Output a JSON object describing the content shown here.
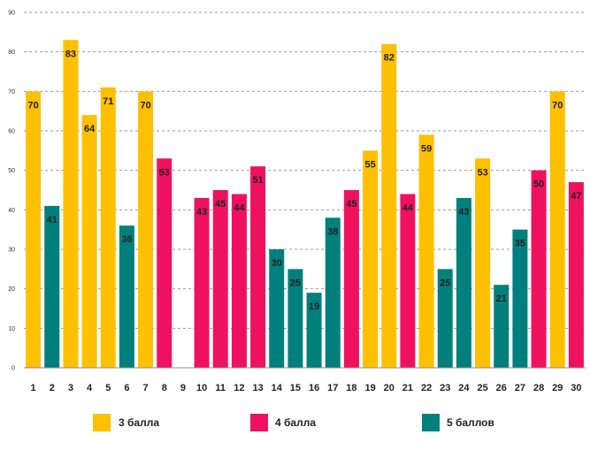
{
  "chart_data": {
    "type": "bar",
    "title": "",
    "xlabel": "",
    "ylabel": "",
    "ylim": [
      0,
      90
    ],
    "y_ticks": [
      "0",
      "10",
      "20",
      "30",
      "40",
      "50",
      "60",
      "70",
      "80",
      "90"
    ],
    "grid": true,
    "legend_position": "bottom",
    "categories": [
      "1",
      "2",
      "3",
      "4",
      "5",
      "6",
      "7",
      "8",
      "9",
      "10",
      "11",
      "12",
      "13",
      "14",
      "15",
      "16",
      "17",
      "18",
      "19",
      "20",
      "21",
      "22",
      "23",
      "24",
      "25",
      "26",
      "27",
      "28",
      "29",
      "30"
    ],
    "values": [
      70,
      41,
      83,
      64,
      71,
      36,
      70,
      53,
      null,
      43,
      45,
      44,
      51,
      30,
      25,
      19,
      38,
      45,
      55,
      82,
      44,
      59,
      25,
      43,
      53,
      21,
      35,
      50,
      70,
      47
    ],
    "labels": [
      "70",
      "41",
      "83",
      "64",
      "71",
      "36",
      "70",
      "53",
      "",
      "43",
      "45",
      "44",
      "51",
      "30",
      "25",
      "19",
      "38",
      "45",
      "55",
      "82",
      "44",
      "59",
      "25",
      "43",
      "53",
      "21",
      "35",
      "50",
      "70",
      "47"
    ],
    "groups": [
      "g3",
      "g5",
      "g3",
      "g3",
      "g3",
      "g5",
      "g3",
      "g4",
      null,
      "g4",
      "g4",
      "g4",
      "g4",
      "g5",
      "g5",
      "g5",
      "g5",
      "g4",
      "g3",
      "g3",
      "g4",
      "g3",
      "g5",
      "g5",
      "g3",
      "g5",
      "g5",
      "g4",
      "g3",
      "g4"
    ],
    "series": [
      {
        "id": "g3",
        "name": "3 балла",
        "color": "#FFC000"
      },
      {
        "id": "g4",
        "name": "4 балла",
        "color": "#F0115E"
      },
      {
        "id": "g5",
        "name": "5 баллов",
        "color": "#00807C"
      }
    ]
  }
}
